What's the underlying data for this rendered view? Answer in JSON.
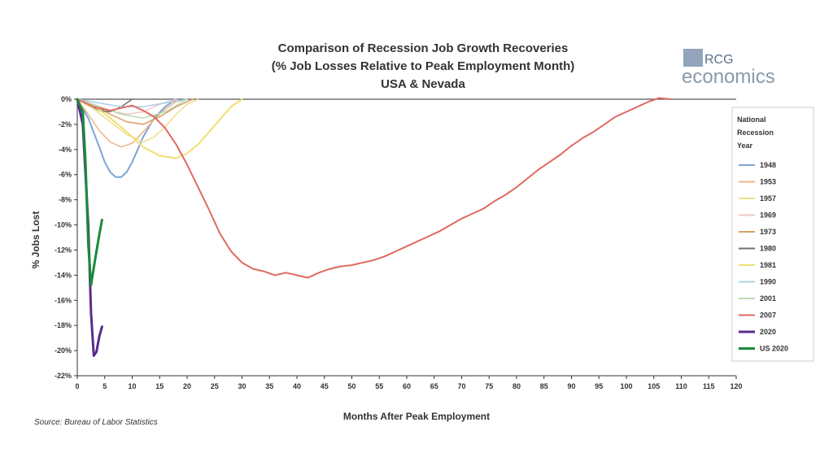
{
  "chart_data": {
    "type": "line",
    "title": [
      "Comparison of Recession Job Growth Recoveries",
      "(% Job Losses Relative to Peak Employment Month)",
      "USA & Nevada"
    ],
    "xlabel": "Months After Peak Employment",
    "ylabel": "% Jobs Lost",
    "xlim": [
      0,
      120
    ],
    "ylim": [
      -22,
      0
    ],
    "xticks": [
      0,
      5,
      10,
      15,
      20,
      25,
      30,
      35,
      40,
      45,
      50,
      55,
      60,
      65,
      70,
      75,
      80,
      85,
      90,
      95,
      100,
      105,
      110,
      115,
      120
    ],
    "yticks": [
      0,
      -2,
      -4,
      -6,
      -8,
      -10,
      -12,
      -14,
      -16,
      -18,
      -20,
      -22
    ],
    "ytick_labels": [
      "0%",
      "-2%",
      "-4%",
      "-6%",
      "-8%",
      "-10%",
      "-12%",
      "-14%",
      "-16%",
      "-18%",
      "-20%",
      "-22%"
    ],
    "legend_title": [
      "National",
      "Recession",
      "Year"
    ],
    "legend_position": "right",
    "series": [
      {
        "name": "1948",
        "color": "#7aa6d6",
        "width": 2,
        "x": [
          0,
          2,
          4,
          5,
          6,
          7,
          8,
          9,
          10,
          11,
          12,
          14,
          16,
          18
        ],
        "y": [
          0,
          -1.5,
          -3.8,
          -5.0,
          -5.8,
          -6.2,
          -6.2,
          -5.8,
          -5.0,
          -4.0,
          -3.0,
          -1.5,
          -0.6,
          0
        ]
      },
      {
        "name": "1953",
        "color": "#f0b488",
        "width": 1.5,
        "x": [
          0,
          2,
          4,
          6,
          8,
          10,
          12,
          14,
          16,
          18,
          20
        ],
        "y": [
          0,
          -1.2,
          -2.5,
          -3.4,
          -3.8,
          -3.5,
          -2.6,
          -1.6,
          -0.8,
          -0.2,
          0
        ]
      },
      {
        "name": "1957",
        "color": "#eedc8a",
        "width": 1.5,
        "x": [
          0,
          3,
          6,
          9,
          12,
          14,
          16,
          18,
          20,
          22
        ],
        "y": [
          0,
          -0.8,
          -1.8,
          -2.8,
          -3.4,
          -3.0,
          -2.2,
          -1.2,
          -0.4,
          0
        ]
      },
      {
        "name": "1969",
        "color": "#f0c8c8",
        "width": 1.5,
        "x": [
          0,
          3,
          6,
          9,
          12,
          15,
          18
        ],
        "y": [
          0,
          -0.4,
          -0.9,
          -1.2,
          -1.0,
          -0.4,
          0
        ]
      },
      {
        "name": "1973",
        "color": "#d8a060",
        "width": 1.5,
        "x": [
          0,
          3,
          6,
          9,
          12,
          15,
          18,
          21
        ],
        "y": [
          0,
          -0.5,
          -1.2,
          -1.8,
          -2.0,
          -1.4,
          -0.6,
          0
        ]
      },
      {
        "name": "1980",
        "color": "#707070",
        "width": 1.5,
        "x": [
          0,
          2,
          4,
          6,
          8,
          10
        ],
        "y": [
          0,
          -0.4,
          -0.9,
          -1.0,
          -0.6,
          0
        ]
      },
      {
        "name": "1981",
        "color": "#f0e070",
        "width": 2,
        "x": [
          0,
          3,
          6,
          9,
          12,
          15,
          18,
          20,
          22,
          24,
          26,
          28,
          30
        ],
        "y": [
          0,
          -0.5,
          -1.5,
          -2.6,
          -3.8,
          -4.5,
          -4.7,
          -4.3,
          -3.6,
          -2.6,
          -1.6,
          -0.6,
          0
        ]
      },
      {
        "name": "1990",
        "color": "#a8d0e6",
        "width": 1.5,
        "x": [
          0,
          4,
          8,
          12,
          16,
          20
        ],
        "y": [
          0,
          -0.3,
          -0.6,
          -0.6,
          -0.3,
          0
        ]
      },
      {
        "name": "2001",
        "color": "#b8dcb0",
        "width": 1.5,
        "x": [
          0,
          4,
          8,
          12,
          16,
          20
        ],
        "y": [
          0,
          -0.6,
          -1.2,
          -1.5,
          -1.0,
          0
        ]
      },
      {
        "name": "2007",
        "color": "#e06a60",
        "width": 2,
        "x": [
          0,
          3,
          6,
          8,
          10,
          12,
          14,
          16,
          18,
          20,
          22,
          24,
          26,
          28,
          30,
          32,
          34,
          36,
          38,
          40,
          42,
          44,
          46,
          48,
          50,
          52,
          54,
          56,
          58,
          60,
          62,
          64,
          66,
          68,
          70,
          72,
          74,
          76,
          78,
          80,
          82,
          84,
          86,
          88,
          90,
          92,
          94,
          96,
          98,
          100,
          102,
          104,
          106,
          108
        ],
        "y": [
          0,
          -0.6,
          -0.9,
          -0.7,
          -0.5,
          -0.9,
          -1.4,
          -2.3,
          -3.6,
          -5.2,
          -7.0,
          -8.8,
          -10.7,
          -12.1,
          -13.0,
          -13.5,
          -13.7,
          -14.0,
          -13.8,
          -14.0,
          -14.2,
          -13.8,
          -13.5,
          -13.3,
          -13.2,
          -13.0,
          -12.8,
          -12.5,
          -12.1,
          -11.7,
          -11.3,
          -10.9,
          -10.5,
          -10.0,
          -9.5,
          -9.1,
          -8.7,
          -8.1,
          -7.6,
          -7.0,
          -6.3,
          -5.6,
          -5.0,
          -4.4,
          -3.7,
          -3.1,
          -2.6,
          -2.0,
          -1.4,
          -1.0,
          -0.6,
          -0.2,
          0.1,
          0
        ]
      },
      {
        "name": "2020",
        "color": "#5a2a90",
        "width": 3,
        "x": [
          0,
          1,
          2,
          2.5,
          3,
          3.5,
          4,
          4.5
        ],
        "y": [
          0,
          -2,
          -10,
          -17,
          -20.4,
          -20.1,
          -18.9,
          -18.1
        ]
      },
      {
        "name": "US 2020",
        "color": "#1a8a3a",
        "width": 3,
        "x": [
          0,
          1,
          1.5,
          2,
          2.5,
          3,
          3.5,
          4,
          4.5
        ],
        "y": [
          0,
          -1,
          -5,
          -11.5,
          -14.8,
          -13.4,
          -12.1,
          -10.8,
          -9.6
        ]
      }
    ]
  },
  "source": "Source: Bureau of Labor Statistics",
  "logo": {
    "top": "RCG",
    "bottom": "economics",
    "color": "#5a6f8a"
  }
}
